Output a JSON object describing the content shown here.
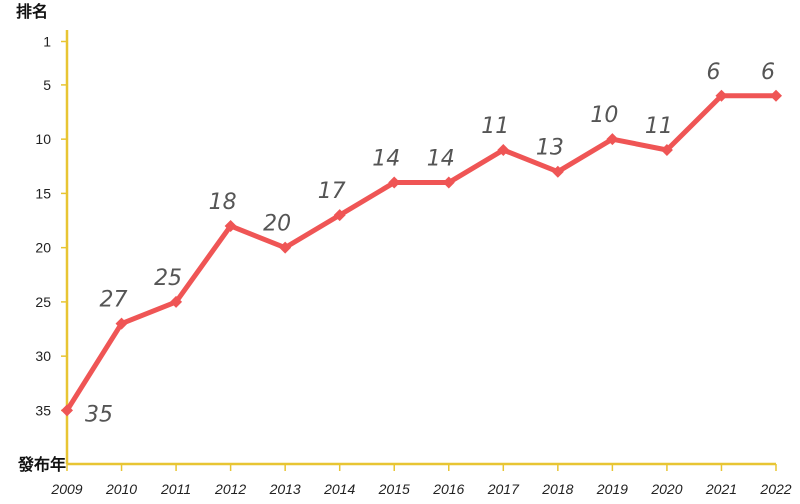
{
  "chart_data": {
    "type": "line",
    "ylabel": "排名",
    "xlabel": "發布年",
    "x": [
      "2009",
      "2010",
      "2011",
      "2012",
      "2013",
      "2014",
      "2015",
      "2016",
      "2017",
      "2018",
      "2019",
      "2020",
      "2021",
      "2022"
    ],
    "series": [
      {
        "values": [
          35,
          27,
          25,
          18,
          20,
          17,
          14,
          14,
          11,
          13,
          10,
          11,
          6,
          6
        ]
      }
    ],
    "y_ticks": [
      1,
      5,
      10,
      15,
      20,
      25,
      30,
      35
    ],
    "ylim": [
      1,
      40
    ],
    "y_inverted": true,
    "grid": false,
    "colors": {
      "line": "#ef5555",
      "axis": "#e8c533",
      "labels": "#555555"
    }
  }
}
